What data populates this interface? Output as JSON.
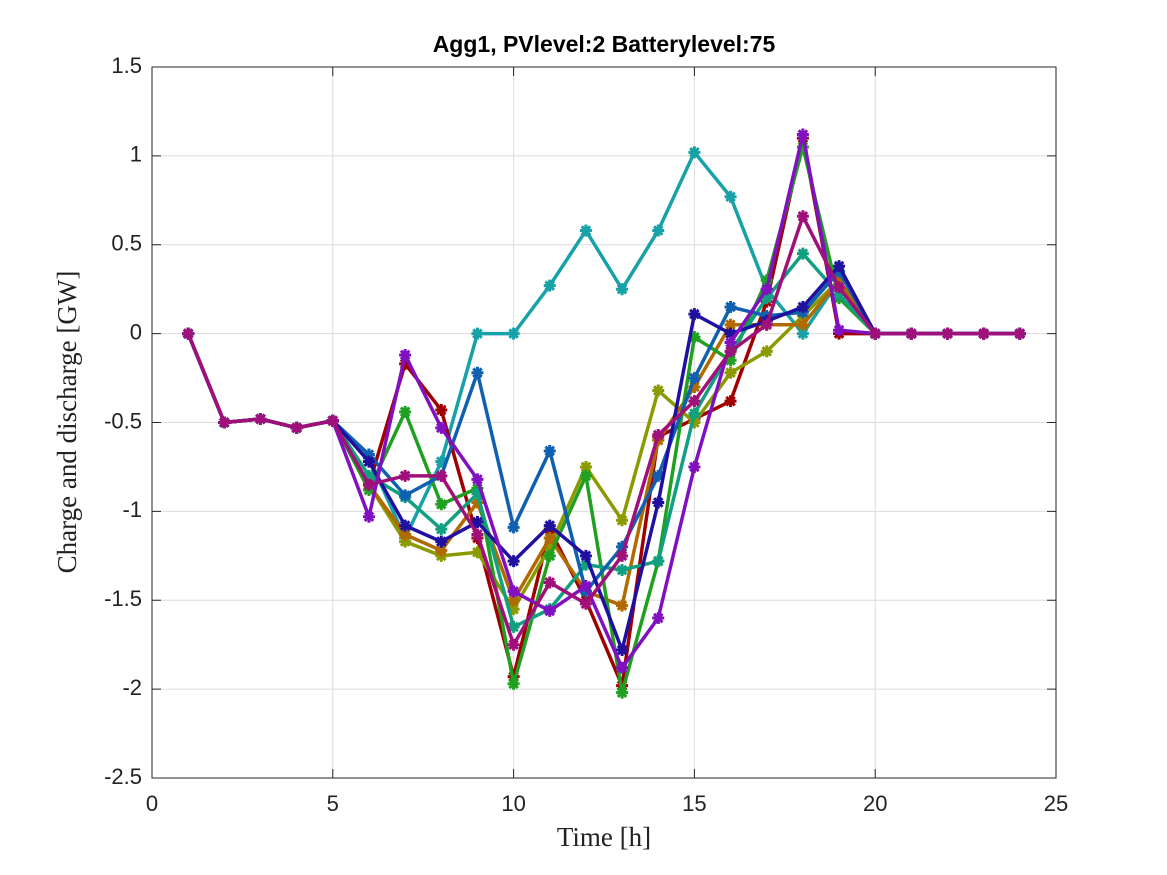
{
  "chart_data": {
    "type": "line",
    "title": "Agg1, PVlevel:2 Batterylevel:75",
    "x_label": "Time [h]",
    "y_label": "Charge and discharge [GW]",
    "x": [
      1,
      2,
      3,
      4,
      5,
      6,
      7,
      8,
      9,
      10,
      11,
      12,
      13,
      14,
      15,
      16,
      17,
      18,
      19,
      20,
      21,
      22,
      23,
      24
    ],
    "xlim": [
      0,
      25
    ],
    "xticks": [
      0,
      5,
      10,
      15,
      20,
      25
    ],
    "ylim": [
      -2.5,
      1.5
    ],
    "yticks": [
      -2.5,
      -2,
      -1.5,
      -1,
      -0.5,
      0,
      0.5,
      1,
      1.5
    ],
    "grid": true,
    "series": [
      {
        "color": "#17a2a8",
        "values": [
          0,
          -0.5,
          -0.48,
          -0.53,
          -0.49,
          -0.7,
          -1.15,
          -0.72,
          0,
          0,
          0.27,
          0.58,
          0.25,
          0.58,
          1.02,
          0.77,
          0.25,
          0,
          0.3,
          0,
          0,
          0,
          0,
          0
        ]
      },
      {
        "color": "#a00000",
        "values": [
          0,
          -0.5,
          -0.48,
          -0.53,
          -0.49,
          -0.85,
          -0.17,
          -0.43,
          -1.15,
          -1.93,
          -1.1,
          -1.5,
          -1.98,
          -0.58,
          -0.48,
          -0.38,
          0.18,
          1.1,
          0,
          0,
          0,
          0,
          0,
          0
        ]
      },
      {
        "color": "#8a9a00",
        "values": [
          0,
          -0.5,
          -0.48,
          -0.53,
          -0.49,
          -0.85,
          -1.17,
          -1.25,
          -1.23,
          -1.55,
          -1.2,
          -0.75,
          -1.05,
          -0.32,
          -0.5,
          -0.22,
          -0.1,
          0.1,
          0.3,
          0,
          0,
          0,
          0,
          0
        ]
      },
      {
        "color": "#b06a00",
        "values": [
          0,
          -0.5,
          -0.48,
          -0.53,
          -0.49,
          -0.85,
          -1.13,
          -1.22,
          -0.95,
          -1.5,
          -1.15,
          -1.45,
          -1.53,
          -0.6,
          -0.3,
          0.05,
          0.05,
          0.05,
          0.3,
          0,
          0,
          0,
          0,
          0
        ]
      },
      {
        "color": "#20a020",
        "values": [
          0,
          -0.5,
          -0.48,
          -0.53,
          -0.49,
          -0.88,
          -0.44,
          -0.96,
          -0.87,
          -1.97,
          -1.25,
          -0.8,
          -2.02,
          -1.28,
          -0.02,
          -0.15,
          0.3,
          1.05,
          0.2,
          0,
          0,
          0,
          0,
          0
        ]
      },
      {
        "color": "#10a080",
        "values": [
          0,
          -0.5,
          -0.48,
          -0.53,
          -0.49,
          -0.8,
          -0.92,
          -1.1,
          -0.9,
          -1.65,
          -1.55,
          -1.3,
          -1.33,
          -1.28,
          -0.45,
          -0.1,
          0.2,
          0.45,
          0.22,
          0,
          0,
          0,
          0,
          0
        ]
      },
      {
        "color": "#1060b0",
        "values": [
          0,
          -0.5,
          -0.48,
          -0.53,
          -0.49,
          -0.68,
          -0.91,
          -0.8,
          -0.22,
          -1.09,
          -0.66,
          -1.45,
          -1.2,
          -0.8,
          -0.25,
          0.15,
          0.1,
          0.12,
          0.35,
          0,
          0,
          0,
          0,
          0
        ]
      },
      {
        "color": "#2010a0",
        "values": [
          0,
          -0.5,
          -0.48,
          -0.53,
          -0.49,
          -0.72,
          -1.08,
          -1.17,
          -1.06,
          -1.28,
          -1.08,
          -1.25,
          -1.78,
          -0.95,
          0.11,
          0,
          0.07,
          0.15,
          0.38,
          0,
          0,
          0,
          0,
          0
        ]
      },
      {
        "color": "#8010c0",
        "values": [
          0,
          -0.5,
          -0.48,
          -0.53,
          -0.49,
          -1.03,
          -0.12,
          -0.53,
          -0.82,
          -1.45,
          -1.56,
          -1.42,
          -1.88,
          -1.6,
          -0.75,
          -0.05,
          0.25,
          1.12,
          0.02,
          0,
          0,
          0,
          0,
          0
        ]
      },
      {
        "color": "#a0107a",
        "values": [
          0,
          -0.5,
          -0.48,
          -0.53,
          -0.49,
          -0.85,
          -0.8,
          -0.8,
          -1.13,
          -1.75,
          -1.4,
          -1.52,
          -1.25,
          -0.57,
          -0.38,
          -0.1,
          0.05,
          0.66,
          0.26,
          0,
          0,
          0,
          0,
          0
        ]
      }
    ]
  }
}
